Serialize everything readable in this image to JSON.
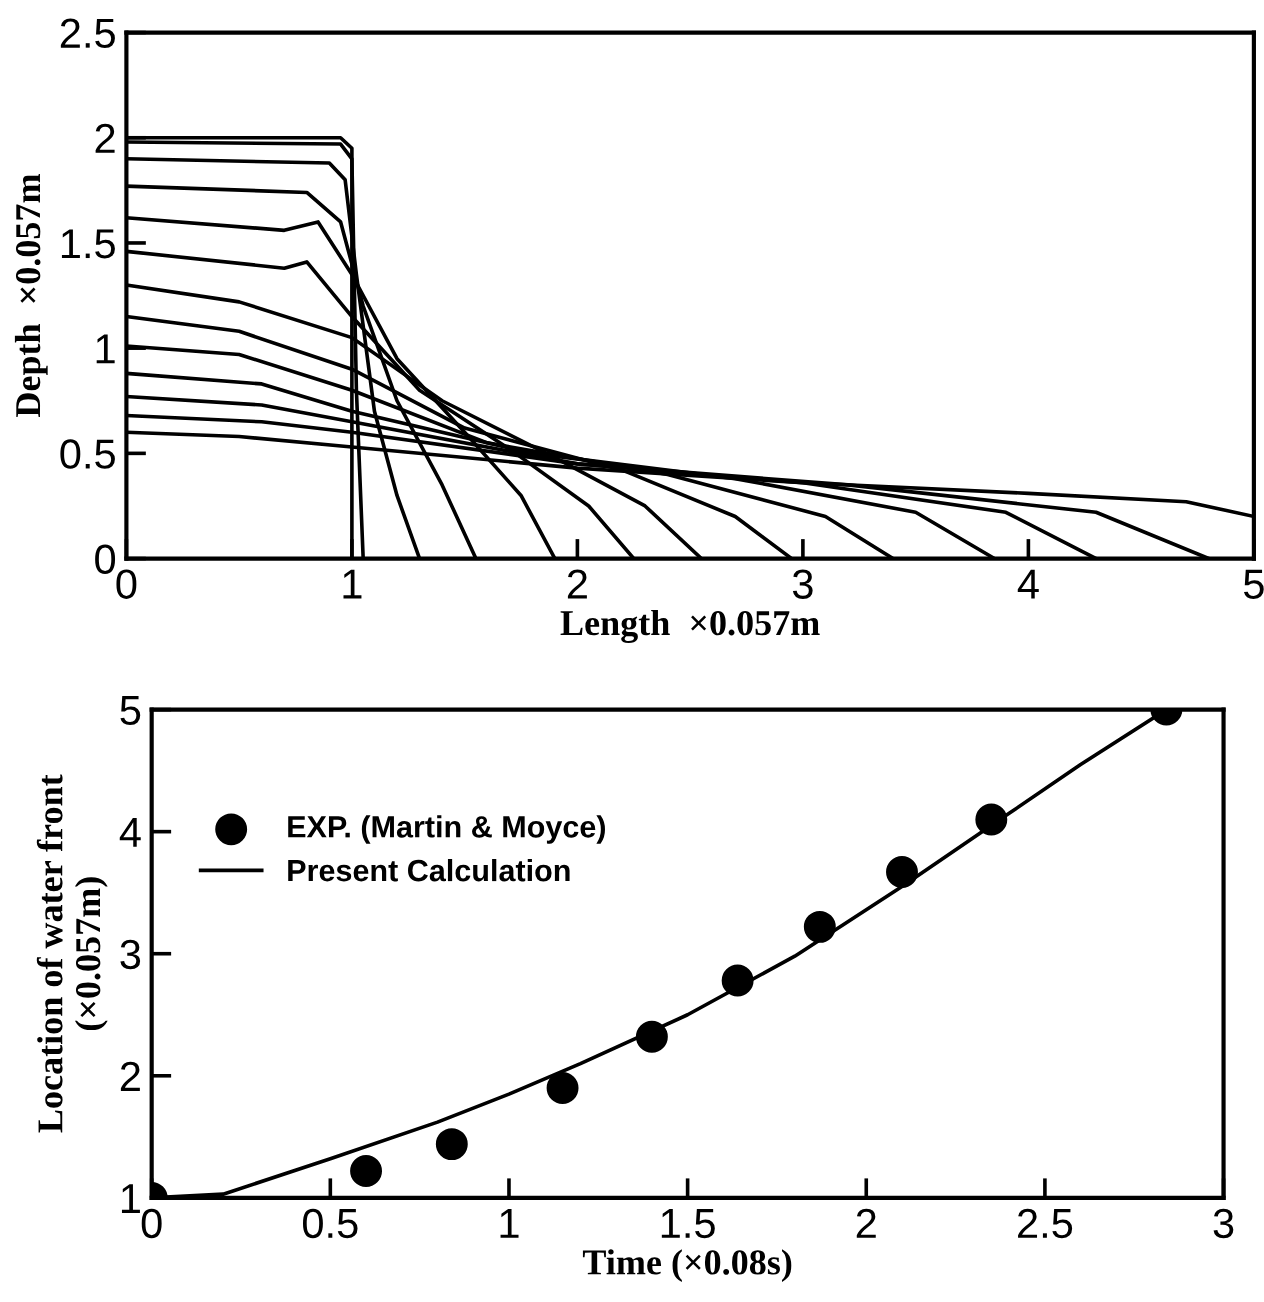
{
  "chart_data": [
    {
      "type": "line",
      "xlabel": "Length  ×0.057m",
      "ylabel": "Depth  ×0.057m",
      "xlim": [
        0,
        5
      ],
      "ylim": [
        0,
        2.5
      ],
      "xticks": [
        0,
        1,
        2,
        3,
        4,
        5
      ],
      "yticks": [
        0,
        0.5,
        1,
        1.5,
        2,
        2.5
      ],
      "grid": false,
      "legend": false,
      "marker": "none",
      "line_style": "solid",
      "series": [
        {
          "color": "#000000",
          "x": [
            0,
            0.95,
            1.0,
            1.0
          ],
          "values": [
            2.0,
            2.0,
            1.95,
            0
          ]
        },
        {
          "color": "#000000",
          "x": [
            0,
            0.95,
            1.0,
            1.02,
            1.05
          ],
          "values": [
            1.98,
            1.97,
            1.9,
            0.8,
            0
          ]
        },
        {
          "color": "#000000",
          "x": [
            0,
            0.9,
            0.97,
            1.02,
            1.1,
            1.2,
            1.3
          ],
          "values": [
            1.9,
            1.88,
            1.8,
            1.35,
            0.7,
            0.3,
            0
          ]
        },
        {
          "color": "#000000",
          "x": [
            0,
            0.8,
            0.95,
            1.05,
            1.2,
            1.4,
            1.55
          ],
          "values": [
            1.77,
            1.74,
            1.6,
            1.2,
            0.75,
            0.35,
            0
          ]
        },
        {
          "color": "#000000",
          "x": [
            0,
            0.7,
            0.85,
            1.0,
            1.2,
            1.5,
            1.75,
            1.9
          ],
          "values": [
            1.62,
            1.56,
            1.6,
            1.35,
            0.95,
            0.6,
            0.3,
            0
          ]
        },
        {
          "color": "#000000",
          "x": [
            0,
            0.7,
            0.8,
            1.0,
            1.3,
            1.7,
            2.05,
            2.25
          ],
          "values": [
            1.46,
            1.38,
            1.41,
            1.15,
            0.8,
            0.52,
            0.25,
            0
          ]
        },
        {
          "color": "#000000",
          "x": [
            0,
            0.5,
            1.0,
            1.4,
            1.9,
            2.3,
            2.55
          ],
          "values": [
            1.3,
            1.22,
            1.05,
            0.75,
            0.48,
            0.25,
            0
          ]
        },
        {
          "color": "#000000",
          "x": [
            0,
            0.5,
            1.0,
            1.5,
            2.2,
            2.7,
            2.95
          ],
          "values": [
            1.15,
            1.08,
            0.9,
            0.62,
            0.42,
            0.2,
            0
          ]
        },
        {
          "color": "#000000",
          "x": [
            0,
            0.5,
            1.0,
            1.6,
            2.4,
            3.1,
            3.4
          ],
          "values": [
            1.01,
            0.97,
            0.8,
            0.55,
            0.4,
            0.2,
            0
          ]
        },
        {
          "color": "#000000",
          "x": [
            0,
            0.6,
            1.0,
            1.8,
            2.7,
            3.5,
            3.85
          ],
          "values": [
            0.88,
            0.83,
            0.7,
            0.5,
            0.38,
            0.22,
            0
          ]
        },
        {
          "color": "#000000",
          "x": [
            0,
            0.6,
            1.0,
            2.0,
            3.0,
            3.9,
            4.3
          ],
          "values": [
            0.77,
            0.73,
            0.65,
            0.45,
            0.36,
            0.22,
            0
          ]
        },
        {
          "color": "#000000",
          "x": [
            0,
            0.6,
            1.0,
            2.0,
            3.2,
            4.3,
            4.8
          ],
          "values": [
            0.68,
            0.65,
            0.6,
            0.45,
            0.35,
            0.22,
            0
          ]
        },
        {
          "color": "#000000",
          "x": [
            0,
            0.5,
            1.0,
            2.0,
            3.0,
            4.0,
            4.7,
            5.0
          ],
          "values": [
            0.6,
            0.58,
            0.53,
            0.43,
            0.36,
            0.31,
            0.27,
            0.2
          ]
        }
      ]
    },
    {
      "type": "line",
      "xlabel": "Time (×0.08s)",
      "ylabel": "Location of water front\n(×0.057m)",
      "xlim": [
        0,
        3
      ],
      "ylim": [
        1,
        5
      ],
      "xticks": [
        0,
        0.5,
        1,
        1.5,
        2,
        2.5,
        3
      ],
      "yticks": [
        1,
        2,
        3,
        4,
        5
      ],
      "grid": false,
      "legend": "top left",
      "series": [
        {
          "name": "EXP. (Martin & Moyce)",
          "type": "scatter",
          "marker": "circle",
          "color": "#000000",
          "x": [
            0,
            0.6,
            0.84,
            1.15,
            1.4,
            1.64,
            1.87,
            2.1,
            2.35,
            2.84
          ],
          "values": [
            1.0,
            1.22,
            1.44,
            1.9,
            2.32,
            2.78,
            3.22,
            3.67,
            4.1,
            5.0
          ]
        },
        {
          "name": "Present Calculation",
          "type": "line",
          "marker": "none",
          "line_style": "solid",
          "color": "#000000",
          "x": [
            0,
            0.2,
            0.5,
            0.8,
            1.0,
            1.2,
            1.5,
            1.8,
            2.1,
            2.4,
            2.6,
            2.84
          ],
          "values": [
            1.0,
            1.03,
            1.32,
            1.62,
            1.85,
            2.1,
            2.5,
            2.98,
            3.55,
            4.15,
            4.55,
            5.0
          ]
        }
      ]
    }
  ]
}
